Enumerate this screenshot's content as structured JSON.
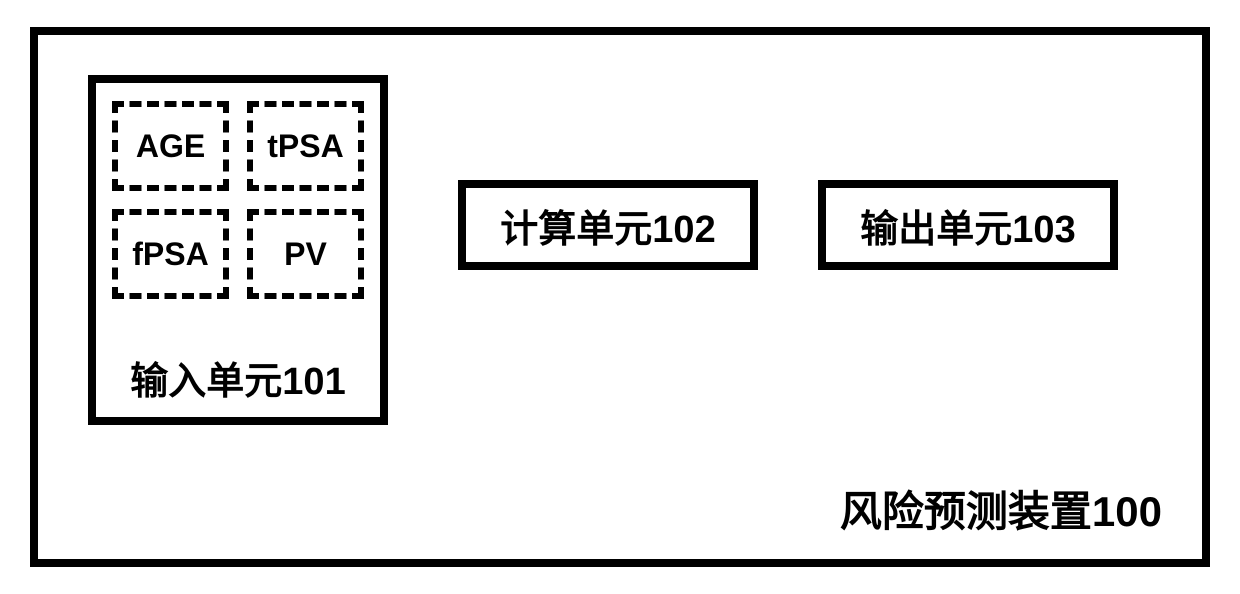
{
  "diagram": {
    "type": "block-diagram",
    "background_color": "#ffffff",
    "border_color": "#000000",
    "border_width": 8,
    "font_weight": "bold",
    "device_label": "风险预测装置100",
    "device_label_fontsize": 42,
    "input_unit": {
      "label": "输入单元101",
      "label_fontsize": 38,
      "border_style": "solid",
      "params": [
        {
          "name": "AGE"
        },
        {
          "name": "tPSA"
        },
        {
          "name": "fPSA"
        },
        {
          "name": "PV"
        }
      ],
      "param_border_style": "dashed",
      "param_fontsize": 32
    },
    "calc_unit": {
      "label": "计算单元102",
      "label_fontsize": 38,
      "border_style": "solid"
    },
    "output_unit": {
      "label": "输出单元103",
      "label_fontsize": 38,
      "border_style": "solid"
    }
  }
}
